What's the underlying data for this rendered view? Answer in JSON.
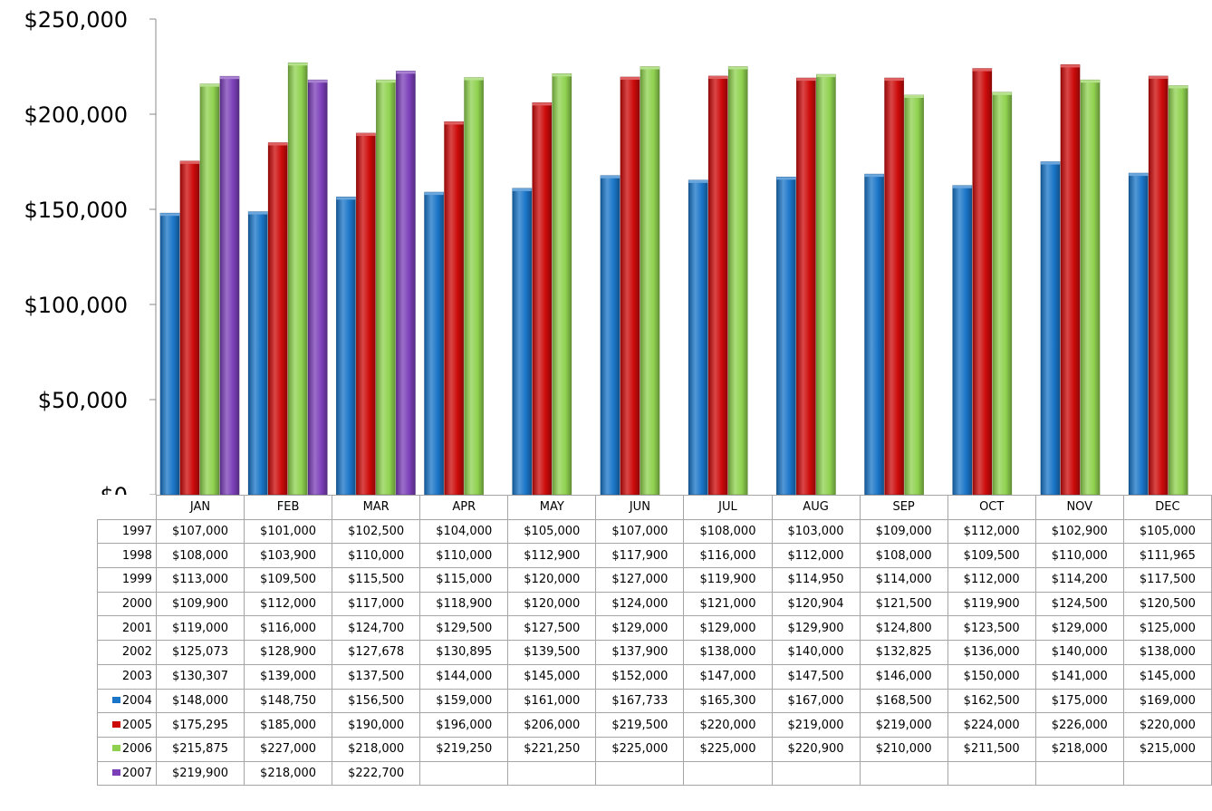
{
  "chart_data": {
    "type": "bar",
    "categories": [
      "JAN",
      "FEB",
      "MAR",
      "APR",
      "MAY",
      "JUN",
      "JUL",
      "AUG",
      "SEP",
      "OCT",
      "NOV",
      "DEC"
    ],
    "ylim": [
      0,
      250000
    ],
    "y_ticks": [
      "$0",
      "$50,000",
      "$100,000",
      "$150,000",
      "$200,000",
      "$250,000"
    ],
    "legend_placement": "data table rows",
    "plotted_series": [
      "2004",
      "2005",
      "2006",
      "2007"
    ],
    "series": [
      {
        "name": "1997",
        "values": [
          107000,
          101000,
          102500,
          104000,
          105000,
          107000,
          108000,
          103000,
          109000,
          112000,
          102900,
          105000
        ],
        "labels": [
          "$107,000",
          "$101,000",
          "$102,500",
          "$104,000",
          "$105,000",
          "$107,000",
          "$108,000",
          "$103,000",
          "$109,000",
          "$112,000",
          "$102,900",
          "$105,000"
        ]
      },
      {
        "name": "1998",
        "values": [
          108000,
          103900,
          110000,
          110000,
          112900,
          117900,
          116000,
          112000,
          108000,
          109500,
          110000,
          111965
        ],
        "labels": [
          "$108,000",
          "$103,900",
          "$110,000",
          "$110,000",
          "$112,900",
          "$117,900",
          "$116,000",
          "$112,000",
          "$108,000",
          "$109,500",
          "$110,000",
          "$111,965"
        ]
      },
      {
        "name": "1999",
        "values": [
          113000,
          109500,
          115500,
          115000,
          120000,
          127000,
          119900,
          114950,
          114000,
          112000,
          114200,
          117500
        ],
        "labels": [
          "$113,000",
          "$109,500",
          "$115,500",
          "$115,000",
          "$120,000",
          "$127,000",
          "$119,900",
          "$114,950",
          "$114,000",
          "$112,000",
          "$114,200",
          "$117,500"
        ]
      },
      {
        "name": "2000",
        "values": [
          109900,
          112000,
          117000,
          118900,
          120000,
          124000,
          121000,
          120904,
          121500,
          119900,
          124500,
          120500
        ],
        "labels": [
          "$109,900",
          "$112,000",
          "$117,000",
          "$118,900",
          "$120,000",
          "$124,000",
          "$121,000",
          "$120,904",
          "$121,500",
          "$119,900",
          "$124,500",
          "$120,500"
        ]
      },
      {
        "name": "2001",
        "values": [
          119000,
          116000,
          124700,
          129500,
          127500,
          129000,
          129000,
          129900,
          124800,
          123500,
          129000,
          125000
        ],
        "labels": [
          "$119,000",
          "$116,000",
          "$124,700",
          "$129,500",
          "$127,500",
          "$129,000",
          "$129,000",
          "$129,900",
          "$124,800",
          "$123,500",
          "$129,000",
          "$125,000"
        ]
      },
      {
        "name": "2002",
        "values": [
          125073,
          128900,
          127678,
          130895,
          139500,
          137900,
          138000,
          140000,
          132825,
          136000,
          140000,
          138000
        ],
        "labels": [
          "$125,073",
          "$128,900",
          "$127,678",
          "$130,895",
          "$139,500",
          "$137,900",
          "$138,000",
          "$140,000",
          "$132,825",
          "$136,000",
          "$140,000",
          "$138,000"
        ]
      },
      {
        "name": "2003",
        "values": [
          130307,
          139000,
          137500,
          144000,
          145000,
          152000,
          147000,
          147500,
          146000,
          150000,
          141000,
          145000
        ],
        "labels": [
          "$130,307",
          "$139,000",
          "$137,500",
          "$144,000",
          "$145,000",
          "$152,000",
          "$147,000",
          "$147,500",
          "$146,000",
          "$150,000",
          "$141,000",
          "$145,000"
        ]
      },
      {
        "name": "2004",
        "color": "#1a75c8",
        "values": [
          148000,
          148750,
          156500,
          159000,
          161000,
          167733,
          165300,
          167000,
          168500,
          162500,
          175000,
          169000
        ],
        "labels": [
          "$148,000",
          "$148,750",
          "$156,500",
          "$159,000",
          "$161,000",
          "$167,733",
          "$165,300",
          "$167,000",
          "$168,500",
          "$162,500",
          "$175,000",
          "$169,000"
        ]
      },
      {
        "name": "2005",
        "color": "#cc0a0a",
        "values": [
          175295,
          185000,
          190000,
          196000,
          206000,
          219500,
          220000,
          219000,
          219000,
          224000,
          226000,
          220000
        ],
        "labels": [
          "$175,295",
          "$185,000",
          "$190,000",
          "$196,000",
          "$206,000",
          "$219,500",
          "$220,000",
          "$219,000",
          "$219,000",
          "$224,000",
          "$226,000",
          "$220,000"
        ]
      },
      {
        "name": "2006",
        "color": "#8fd14f",
        "values": [
          215875,
          227000,
          218000,
          219250,
          221250,
          225000,
          225000,
          220900,
          210000,
          211500,
          218000,
          215000
        ],
        "labels": [
          "$215,875",
          "$227,000",
          "$218,000",
          "$219,250",
          "$221,250",
          "$225,000",
          "$225,000",
          "$220,900",
          "$210,000",
          "$211,500",
          "$218,000",
          "$215,000"
        ]
      },
      {
        "name": "2007",
        "color": "#7b3fb8",
        "values": [
          219900,
          218000,
          222700,
          null,
          null,
          null,
          null,
          null,
          null,
          null,
          null,
          null
        ],
        "labels": [
          "$219,900",
          "$218,000",
          "$222,700",
          "",
          "",
          "",
          "",
          "",
          "",
          "",
          "",
          ""
        ]
      }
    ]
  }
}
